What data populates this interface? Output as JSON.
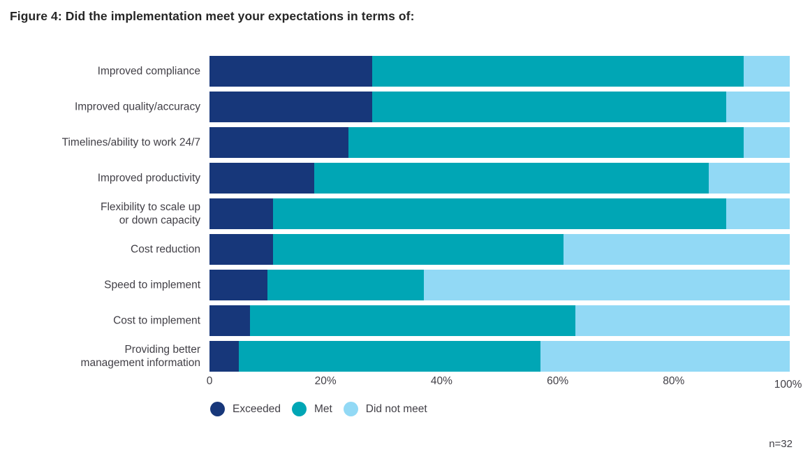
{
  "figure": {
    "sample_note": "n=32"
  },
  "chart_data": {
    "type": "bar",
    "orientation": "horizontal",
    "stacked": true,
    "title": "Figure 4: Did the implementation meet your expectations in terms of:",
    "xlabel": "",
    "ylabel": "",
    "xlim": [
      0,
      100
    ],
    "unit": "percent",
    "grid": false,
    "legend_position": "bottom",
    "annotation": "n=32",
    "categories": [
      "Improved compliance",
      "Improved quality/accuracy",
      "Timelines/ability to work 24/7",
      "Improved productivity",
      "Flexibility to scale up\nor down capacity",
      "Cost reduction",
      "Speed to implement",
      "Cost to implement",
      "Providing better\nmanagement information"
    ],
    "series": [
      {
        "name": "Exceeded",
        "color": "#17377A",
        "values": [
          28,
          28,
          24,
          18,
          11,
          11,
          10,
          7,
          5
        ]
      },
      {
        "name": "Met",
        "color": "#00A6B5",
        "values": [
          64,
          61,
          68,
          68,
          78,
          50,
          27,
          56,
          52
        ]
      },
      {
        "name": "Did not meet",
        "color": "#92D9F5",
        "values": [
          8,
          11,
          8,
          14,
          11,
          39,
          63,
          37,
          43
        ]
      }
    ],
    "x_ticks": [
      "0",
      "20%",
      "40%",
      "60%",
      "80%",
      "100%"
    ]
  }
}
